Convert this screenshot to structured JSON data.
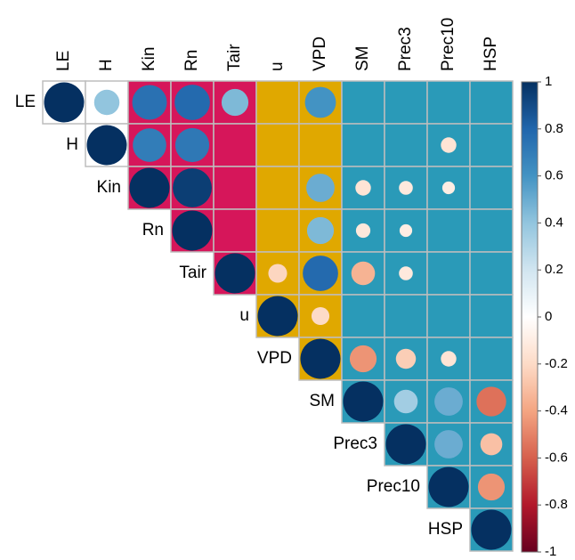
{
  "chart_data": {
    "type": "corrplot",
    "variables": [
      "LE",
      "H",
      "Kin",
      "Rn",
      "Tair",
      "u",
      "VPD",
      "SM",
      "Prec3",
      "Prec10",
      "HSP"
    ],
    "values": [
      [
        1,
        0.4,
        0.75,
        0.78,
        0.45,
        null,
        0.6,
        null,
        null,
        null,
        null
      ],
      [
        1,
        0.7,
        0.72,
        null,
        null,
        null,
        null,
        null,
        -0.15,
        null
      ],
      [
        1,
        0.95,
        null,
        null,
        0.5,
        -0.15,
        -0.12,
        -0.1,
        null
      ],
      [
        1,
        null,
        null,
        0.45,
        -0.13,
        -0.1,
        null,
        null
      ],
      [
        1,
        -0.22,
        0.78,
        -0.35,
        -0.12,
        null,
        null
      ],
      [
        1,
        -0.2,
        null,
        null,
        null,
        null
      ],
      [
        1,
        -0.45,
        -0.25,
        -0.15,
        null
      ],
      [
        1,
        0.35,
        0.5,
        -0.55
      ],
      [
        1,
        0.5,
        -0.3
      ],
      [
        1,
        -0.45
      ],
      [
        1
      ]
    ],
    "column_backgrounds": [
      "#ffffff",
      "#ffffff",
      "#d6165a",
      "#d6165a",
      "#d6165a",
      "#e0a800",
      "#e0a800",
      "#2a9ab8",
      "#2a9ab8",
      "#2a9ab8",
      "#2a9ab8"
    ],
    "colorscale": [
      "#67001f",
      "#b2182b",
      "#d6604d",
      "#f4a582",
      "#fddbc7",
      "#ffffff",
      "#d1e5f0",
      "#92c5de",
      "#4393c3",
      "#2166ac",
      "#053061"
    ],
    "clim": [
      -1,
      1
    ],
    "cticks": [
      1,
      0.8,
      0.6,
      0.4,
      0.2,
      0,
      -0.2,
      -0.4,
      -0.6,
      -0.8,
      -1
    ]
  }
}
